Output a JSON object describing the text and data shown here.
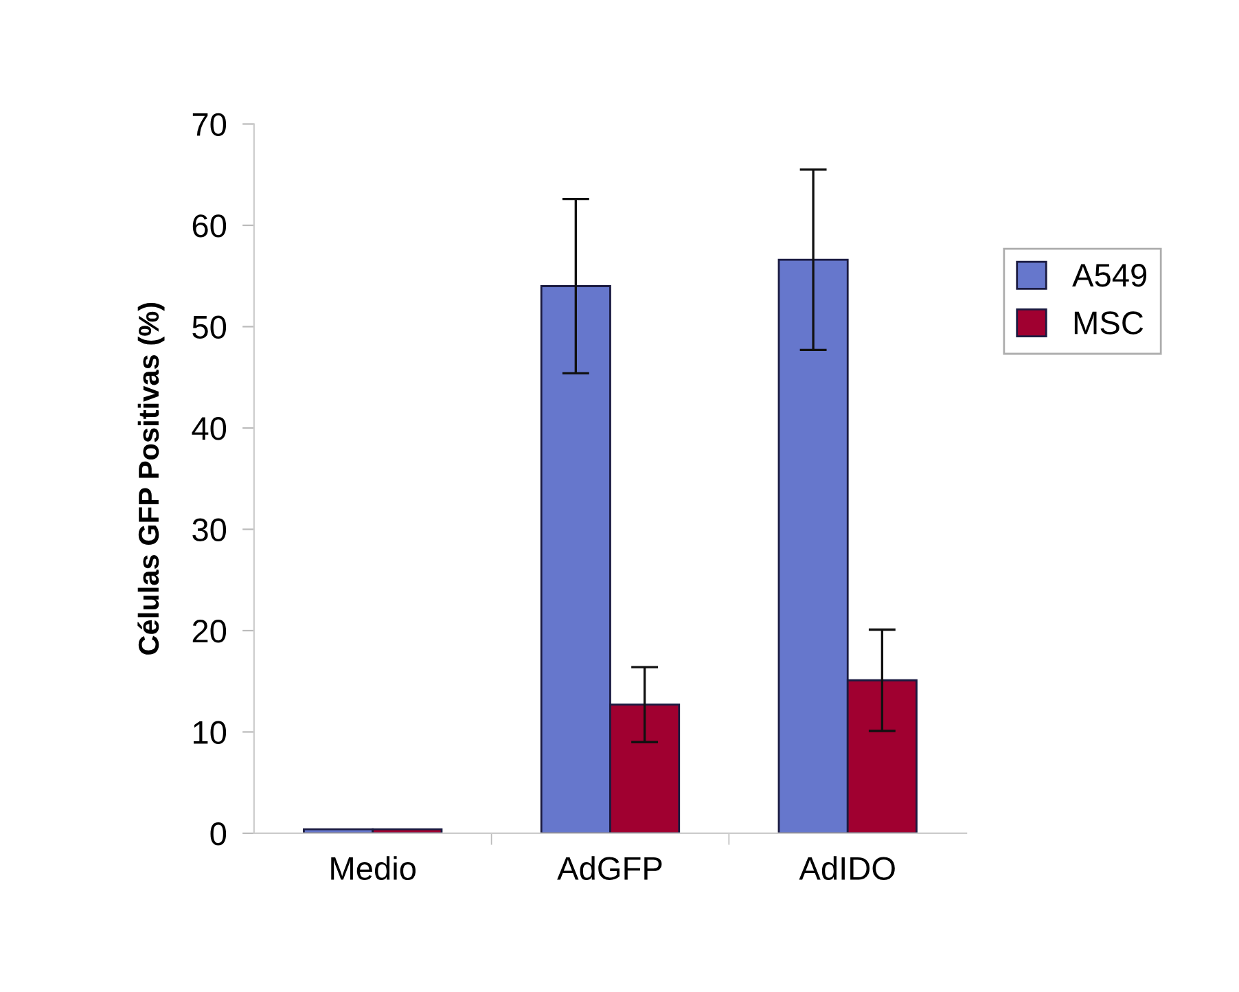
{
  "chart_data": {
    "type": "bar",
    "ylabel": "Células GFP Positivas (%)",
    "categories": [
      "Medio",
      "AdGFP",
      "AdIDO"
    ],
    "series": [
      {
        "name": "A549",
        "color": "#6677cc",
        "values": [
          0.4,
          54.0,
          56.6
        ],
        "errors": [
          null,
          8.6,
          8.9
        ]
      },
      {
        "name": "MSC",
        "color": "#a00030",
        "values": [
          0.4,
          12.7,
          15.1
        ],
        "errors": [
          null,
          3.7,
          5.0
        ]
      }
    ],
    "ylim": [
      0,
      70
    ],
    "yticks": [
      0,
      10,
      20,
      30,
      40,
      50,
      60,
      70
    ],
    "grid": false,
    "legend": "right"
  }
}
